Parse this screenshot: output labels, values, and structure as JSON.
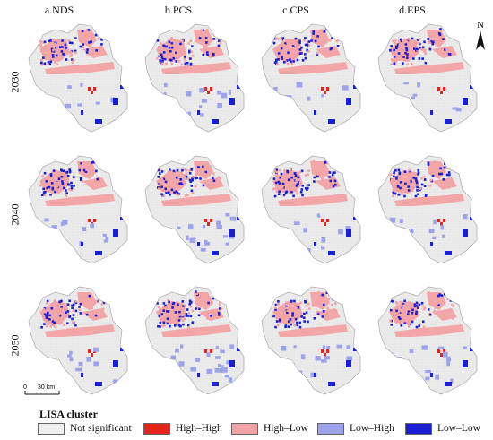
{
  "columns": [
    {
      "label": "a.NDS"
    },
    {
      "label": "b.PCS"
    },
    {
      "label": "c.CPS"
    },
    {
      "label": "d.EPS"
    }
  ],
  "rows": [
    {
      "label": "2030"
    },
    {
      "label": "2040"
    },
    {
      "label": "2050"
    }
  ],
  "north_arrow": {
    "label": "N"
  },
  "scale_bar": {
    "zero": "0",
    "value": "30 km"
  },
  "legend": {
    "title": "LISA cluster",
    "items": [
      {
        "label": "Not significant",
        "color": "#eeeeee"
      },
      {
        "label": "High–High",
        "color": "#e8231e"
      },
      {
        "label": "High–Low",
        "color": "#f2a2a4"
      },
      {
        "label": "Low–High",
        "color": "#9da3ea"
      },
      {
        "label": "Low–Low",
        "color": "#1a1fd6"
      }
    ]
  }
}
